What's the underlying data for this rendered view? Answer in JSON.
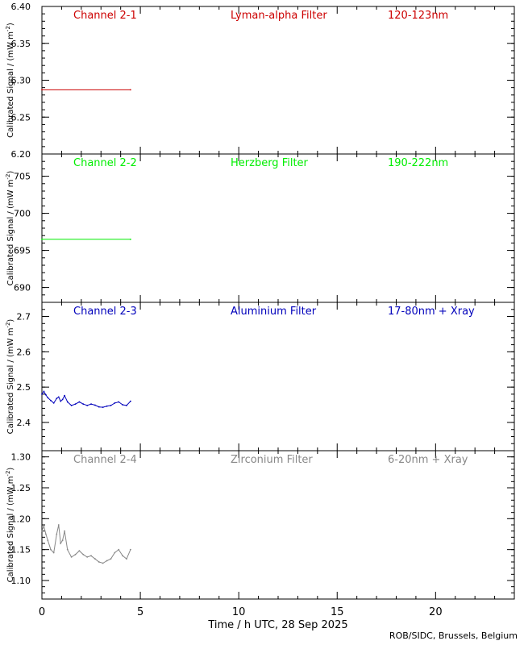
{
  "xaxis": {
    "label": "Time / h UTC, 28 Sep 2025",
    "min": 0,
    "max": 24,
    "ticks": [
      "0",
      "5",
      "10",
      "15",
      "20"
    ],
    "tick_values": [
      0,
      5,
      10,
      15,
      20
    ],
    "minor_step": 1
  },
  "credit": "ROB/SIDC, Brussels, Belgium",
  "ylabel": "Calibrated Signal / (mW m",
  "ylabel_sup": "-2",
  "ylabel_close": ")",
  "chart_data": [
    {
      "type": "line",
      "channel": "Channel 2-1",
      "filter": "Lyman-alpha Filter",
      "band": "120-123nm",
      "color": "#cc0000",
      "ylim": [
        6.2,
        6.4
      ],
      "yticks": [
        "6.20",
        "6.25",
        "6.30",
        "6.35",
        "6.40"
      ],
      "ytick_values": [
        6.2,
        6.25,
        6.3,
        6.35,
        6.4
      ],
      "minor_step": 0.01,
      "x": [
        0.0,
        4.5
      ],
      "y": [
        6.287,
        6.287
      ]
    },
    {
      "type": "line",
      "channel": "Channel 2-2",
      "filter": "Herzberg Filter",
      "band": "190-222nm",
      "color": "#00ee00",
      "ylim": [
        688,
        708
      ],
      "yticks": [
        "690",
        "695",
        "700",
        "705"
      ],
      "ytick_values": [
        690,
        695,
        700,
        705
      ],
      "minor_step": 1,
      "x": [
        0.0,
        4.5
      ],
      "y": [
        696.5,
        696.5
      ]
    },
    {
      "type": "line",
      "channel": "Channel 2-3",
      "filter": "Aluminium Filter",
      "band": "17-80nm + Xray",
      "color": "#0000bb",
      "ylim": [
        2.32,
        2.74
      ],
      "yticks": [
        "2.4",
        "2.5",
        "2.6",
        "2.7"
      ],
      "ytick_values": [
        2.4,
        2.5,
        2.6,
        2.7
      ],
      "minor_step": 0.02,
      "x": [
        0.0,
        0.1,
        0.2,
        0.3,
        0.45,
        0.6,
        0.75,
        0.85,
        0.95,
        1.05,
        1.15,
        1.3,
        1.5,
        1.7,
        1.9,
        2.1,
        2.3,
        2.5,
        2.7,
        2.9,
        3.1,
        3.3,
        3.5,
        3.7,
        3.9,
        4.1,
        4.3,
        4.5
      ],
      "y": [
        2.48,
        2.488,
        2.478,
        2.47,
        2.462,
        2.455,
        2.468,
        2.472,
        2.46,
        2.465,
        2.476,
        2.458,
        2.448,
        2.452,
        2.458,
        2.452,
        2.448,
        2.452,
        2.449,
        2.444,
        2.443,
        2.446,
        2.448,
        2.455,
        2.458,
        2.45,
        2.448,
        2.46
      ]
    },
    {
      "type": "line",
      "channel": "Channel 2-4",
      "filter": "Zirconium Filter",
      "band": "6-20nm + Xray",
      "color": "#888888",
      "ylim": [
        1.07,
        1.31
      ],
      "yticks": [
        "1.10",
        "1.15",
        "1.20",
        "1.25",
        "1.30"
      ],
      "ytick_values": [
        1.1,
        1.15,
        1.2,
        1.25,
        1.3
      ],
      "minor_step": 0.01,
      "x": [
        0.0,
        0.1,
        0.2,
        0.3,
        0.45,
        0.6,
        0.75,
        0.85,
        0.95,
        1.05,
        1.15,
        1.3,
        1.5,
        1.7,
        1.9,
        2.1,
        2.3,
        2.5,
        2.7,
        2.9,
        3.1,
        3.3,
        3.5,
        3.7,
        3.9,
        4.1,
        4.3,
        4.5
      ],
      "y": [
        1.18,
        1.188,
        1.175,
        1.165,
        1.15,
        1.145,
        1.175,
        1.19,
        1.16,
        1.165,
        1.18,
        1.15,
        1.138,
        1.142,
        1.148,
        1.142,
        1.138,
        1.14,
        1.135,
        1.13,
        1.128,
        1.132,
        1.135,
        1.145,
        1.15,
        1.14,
        1.135,
        1.15
      ]
    }
  ]
}
